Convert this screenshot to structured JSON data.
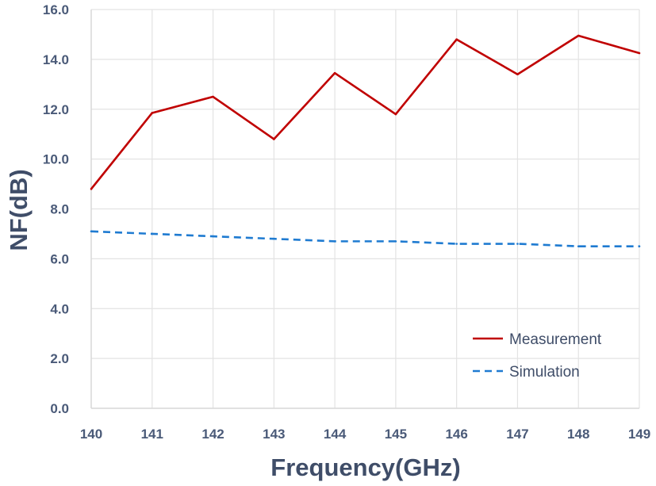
{
  "chart_data": {
    "type": "line",
    "title": "",
    "xlabel": "Frequency(GHz)",
    "ylabel": "NF(dB)",
    "x": [
      140,
      141,
      142,
      143,
      144,
      145,
      146,
      147,
      148,
      149
    ],
    "x_tick_labels": [
      "140",
      "141",
      "142",
      "143",
      "144",
      "145",
      "146",
      "147",
      "148",
      "149"
    ],
    "y_tick_labels": [
      "0.0",
      "2.0",
      "4.0",
      "6.0",
      "8.0",
      "10.0",
      "12.0",
      "14.0",
      "16.0"
    ],
    "xlim": [
      140,
      149
    ],
    "ylim": [
      0,
      16
    ],
    "grid": true,
    "legend_position": "bottom-right",
    "series": [
      {
        "name": "Measurement",
        "color": "#c00000",
        "style": "solid",
        "values": [
          8.8,
          11.85,
          12.5,
          10.8,
          13.45,
          11.8,
          14.8,
          13.4,
          14.95,
          14.25
        ]
      },
      {
        "name": "Simulation",
        "color": "#1f7bd1",
        "style": "dashed",
        "values": [
          7.1,
          7.0,
          6.9,
          6.8,
          6.7,
          6.7,
          6.6,
          6.6,
          6.5,
          6.5
        ]
      }
    ]
  }
}
